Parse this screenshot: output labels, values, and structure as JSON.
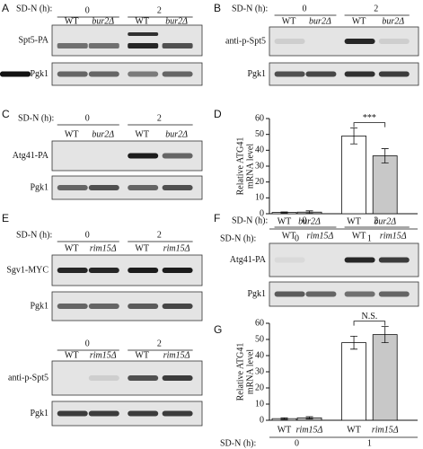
{
  "blot_panels": [
    {
      "letter": "A",
      "header": "SD-N (h):",
      "times": [
        "0",
        "2"
      ],
      "lanes": [
        "WT",
        "bur2Δ",
        "WT",
        "bur2Δ"
      ],
      "blots": [
        "Spt5-PA",
        "Pgk1"
      ]
    },
    {
      "letter": "B",
      "header": "SD-N (h):",
      "times": [
        "0",
        "2"
      ],
      "lanes": [
        "WT",
        "bur2Δ",
        "WT",
        "bur2Δ"
      ],
      "blots": [
        "anti-p-Spt5",
        "Pgk1"
      ]
    },
    {
      "letter": "C",
      "header": "SD-N (h):",
      "times": [
        "0",
        "2"
      ],
      "lanes": [
        "WT",
        "bur2Δ",
        "WT",
        "bur2Δ"
      ],
      "blots": [
        "Atg41-PA",
        "Pgk1"
      ]
    },
    {
      "letter": "E",
      "header": "SD-N (h):",
      "times": [
        "0",
        "2"
      ],
      "lanes": [
        "WT",
        "rim15Δ",
        "WT",
        "rim15Δ"
      ],
      "blots": [
        "Sgv1-MYC",
        "Pgk1"
      ]
    },
    {
      "times": [
        "0",
        "2"
      ],
      "lanes": [
        "WT",
        "rim15Δ",
        "WT",
        "rim15Δ"
      ],
      "blots": [
        "anti-p-Spt5",
        "Pgk1"
      ]
    },
    {
      "letter": "F",
      "header": "SD-N (h):",
      "times": [
        "0",
        "2"
      ],
      "lanes": [
        "WT",
        "rim15Δ",
        "WT",
        "rim15Δ"
      ],
      "blots": [
        "Atg41-PA",
        "Pgk1"
      ]
    }
  ],
  "chart_data": [
    {
      "type": "bar",
      "panel_letter": "D",
      "y_label": [
        "Relative ATG41",
        "mRNA level"
      ],
      "categories": [
        "WT",
        "bur2Δ",
        "WT",
        "bur2Δ"
      ],
      "values": [
        0.8,
        1,
        49,
        36.5
      ],
      "errors": [
        0.3,
        0.8,
        5,
        4.5
      ],
      "colors": [
        "#ffffff",
        "#c8c8c8",
        "#ffffff",
        "#c8c8c8"
      ],
      "ylim": [
        0,
        60
      ],
      "yticks": [
        0,
        10,
        20,
        30,
        40,
        50,
        60
      ],
      "annotation": "***",
      "group_title": "SD-N (h):",
      "groups": [
        "0",
        "1"
      ]
    },
    {
      "type": "bar",
      "panel_letter": "G",
      "y_label": [
        "Relative ATG41",
        "mRNA level"
      ],
      "categories": [
        "WT",
        "rim15Δ",
        "WT",
        "rim15Δ"
      ],
      "values": [
        1,
        1.5,
        48,
        53
      ],
      "errors": [
        0.5,
        0.7,
        4,
        5
      ],
      "colors": [
        "#ffffff",
        "#c8c8c8",
        "#ffffff",
        "#c8c8c8"
      ],
      "ylim": [
        0,
        60
      ],
      "yticks": [
        0,
        10,
        20,
        30,
        40,
        50,
        60
      ],
      "annotation": "N.S.",
      "group_title": "SD-N (h):",
      "groups": [
        "0",
        "1"
      ]
    }
  ]
}
